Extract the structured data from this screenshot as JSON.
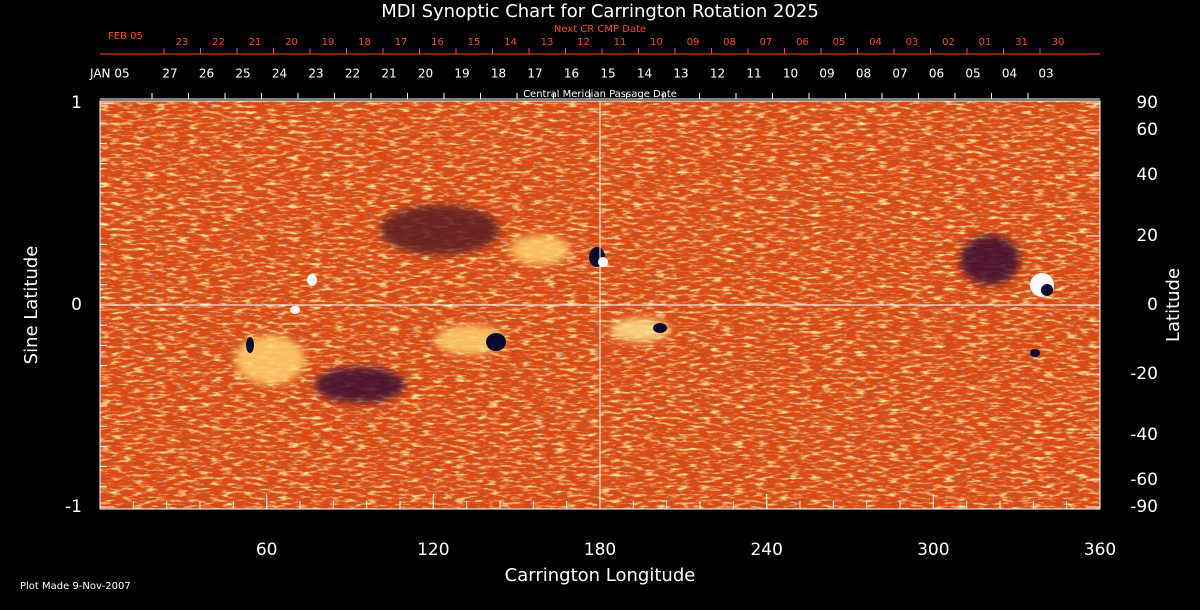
{
  "chart_data": {
    "type": "synoptic-map",
    "title": "MDI Synoptic Chart for Carrington Rotation 2025",
    "top_axes": [
      {
        "label": "Next CR CMP Date",
        "color": "#ff4a1a",
        "dates": [
          "FEB 05",
          "23",
          "22",
          "21",
          "20",
          "19",
          "18",
          "17",
          "16",
          "15",
          "14",
          "13",
          "12",
          "11",
          "10",
          "09",
          "08",
          "07",
          "06",
          "05",
          "04",
          "03",
          "02",
          "01",
          "31",
          "30"
        ]
      },
      {
        "label": "Central Meridian Passage Date",
        "color": "#ffffff",
        "dates": [
          "JAN 05",
          "27",
          "26",
          "25",
          "24",
          "23",
          "22",
          "21",
          "20",
          "19",
          "18",
          "17",
          "16",
          "15",
          "14",
          "13",
          "12",
          "11",
          "10",
          "09",
          "08",
          "07",
          "06",
          "05",
          "04",
          "03"
        ]
      }
    ],
    "x_label": "Carrington Longitude",
    "xlim": [
      0,
      360
    ],
    "xticks": [
      60,
      120,
      180,
      240,
      300,
      360
    ],
    "y_label": "Sine Latitude",
    "ylim": [
      -1,
      1
    ],
    "yticks": [
      -1,
      0,
      1
    ],
    "y2_label": "Latitude",
    "y2_scale": "sine",
    "y2ticks": [
      -90,
      -60,
      -40,
      -20,
      0,
      20,
      40,
      60,
      90
    ],
    "footer": "Plot Made  9-Nov-2007"
  }
}
